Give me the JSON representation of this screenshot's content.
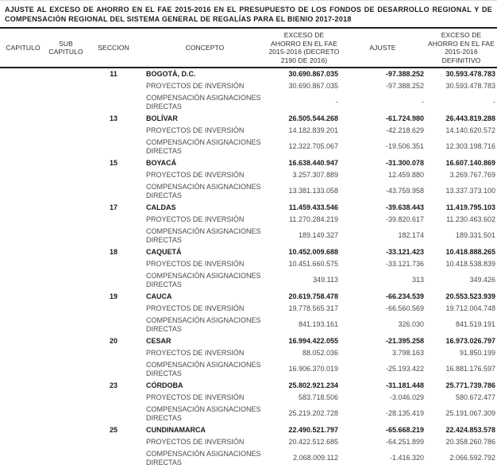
{
  "document": {
    "title": "AJUSTE AL EXCESO DE AHORRO EN EL FAE 2015-2016 EN EL PRESUPUESTO DE LOS FONDOS DE DESARROLLO REGIONAL Y DE COMPENSACIÓN REGIONAL DEL SISTEMA GENERAL DE REGALÍAS PARA EL BIENIO 2017-2018"
  },
  "table": {
    "headers": {
      "capitulo": "CAPITULO",
      "sub_capitulo": "SUB\nCAPITULO",
      "seccion": "SECCION",
      "concepto": "CONCEPTO",
      "decreto": "EXCESO DE\nAHORRO EN EL FAE\n2015-2016 (DECRETO\n2190 DE 2016)",
      "ajuste": "AJUSTE",
      "definitivo": "EXCESO DE\nAHORRO EN EL FAE\n2015-2016\nDEFINITIVO"
    },
    "row_labels": {
      "proyectos": "PROYECTOS DE INVERSIÓN",
      "compensacion": "COMPENSACIÓN ASIGNACIONES DIRECTAS"
    },
    "sections": [
      {
        "seccion": "11",
        "name": "BOGOTÁ, D.C.",
        "total": {
          "decreto": "30.690.867.035",
          "ajuste": "-97.388.252",
          "definitivo": "30.593.478.783"
        },
        "proyectos": {
          "decreto": "30.690.867.035",
          "ajuste": "-97.388.252",
          "definitivo": "30.593.478.783"
        },
        "compensacion": {
          "decreto": "-",
          "ajuste": "-",
          "definitivo": "-"
        }
      },
      {
        "seccion": "13",
        "name": "BOLÍVAR",
        "total": {
          "decreto": "26.505.544.268",
          "ajuste": "-61.724.980",
          "definitivo": "26.443.819.288"
        },
        "proyectos": {
          "decreto": "14.182.839.201",
          "ajuste": "-42.218.629",
          "definitivo": "14.140.620.572"
        },
        "compensacion": {
          "decreto": "12.322.705.067",
          "ajuste": "-19.506.351",
          "definitivo": "12.303.198.716"
        }
      },
      {
        "seccion": "15",
        "name": "BOYACÁ",
        "total": {
          "decreto": "16.638.440.947",
          "ajuste": "-31.300.078",
          "definitivo": "16.607.140.869"
        },
        "proyectos": {
          "decreto": "3.257.307.889",
          "ajuste": "12.459.880",
          "definitivo": "3.269.767.769"
        },
        "compensacion": {
          "decreto": "13.381.133.058",
          "ajuste": "-43.759.958",
          "definitivo": "13.337.373.100"
        }
      },
      {
        "seccion": "17",
        "name": "CALDAS",
        "total": {
          "decreto": "11.459.433.546",
          "ajuste": "-39.638.443",
          "definitivo": "11.419.795.103"
        },
        "proyectos": {
          "decreto": "11.270.284.219",
          "ajuste": "-39.820.617",
          "definitivo": "11.230.463.602"
        },
        "compensacion": {
          "decreto": "189.149.327",
          "ajuste": "182.174",
          "definitivo": "189.331.501"
        }
      },
      {
        "seccion": "18",
        "name": "CAQUETÁ",
        "total": {
          "decreto": "10.452.009.688",
          "ajuste": "-33.121.423",
          "definitivo": "10.418.888.265"
        },
        "proyectos": {
          "decreto": "10.451.660.575",
          "ajuste": "-33.121.736",
          "definitivo": "10.418.538.839"
        },
        "compensacion": {
          "decreto": "349.113",
          "ajuste": "313",
          "definitivo": "349.426"
        }
      },
      {
        "seccion": "19",
        "name": "CAUCA",
        "total": {
          "decreto": "20.619.758.478",
          "ajuste": "-66.234.539",
          "definitivo": "20.553.523.939"
        },
        "proyectos": {
          "decreto": "19.778.565.317",
          "ajuste": "-66.560.569",
          "definitivo": "19.712.004.748"
        },
        "compensacion": {
          "decreto": "841.193.161",
          "ajuste": "326.030",
          "definitivo": "841.519.191"
        }
      },
      {
        "seccion": "20",
        "name": "CESAR",
        "total": {
          "decreto": "16.994.422.055",
          "ajuste": "-21.395.258",
          "definitivo": "16.973.026.797"
        },
        "proyectos": {
          "decreto": "88.052.036",
          "ajuste": "3.798.163",
          "definitivo": "91.850.199"
        },
        "compensacion": {
          "decreto": "16.906.370.019",
          "ajuste": "-25.193.422",
          "definitivo": "16.881.176.597"
        }
      },
      {
        "seccion": "23",
        "name": "CÓRDOBA",
        "total": {
          "decreto": "25.802.921.234",
          "ajuste": "-31.181.448",
          "definitivo": "25.771.739.786"
        },
        "proyectos": {
          "decreto": "583.718.506",
          "ajuste": "-3.046.029",
          "definitivo": "580.672.477"
        },
        "compensacion": {
          "decreto": "25.219.202.728",
          "ajuste": "-28.135.419",
          "definitivo": "25.191.067.309"
        }
      },
      {
        "seccion": "25",
        "name": "CUNDINAMARCA",
        "total": {
          "decreto": "22.490.521.797",
          "ajuste": "-65.668.219",
          "definitivo": "22.424.853.578"
        },
        "proyectos": {
          "decreto": "20.422.512.685",
          "ajuste": "-64.251.899",
          "definitivo": "20.358.260.786"
        },
        "compensacion": {
          "decreto": "2.068.009.112",
          "ajuste": "-1.416.320",
          "definitivo": "2.066.592.792"
        }
      }
    ]
  }
}
